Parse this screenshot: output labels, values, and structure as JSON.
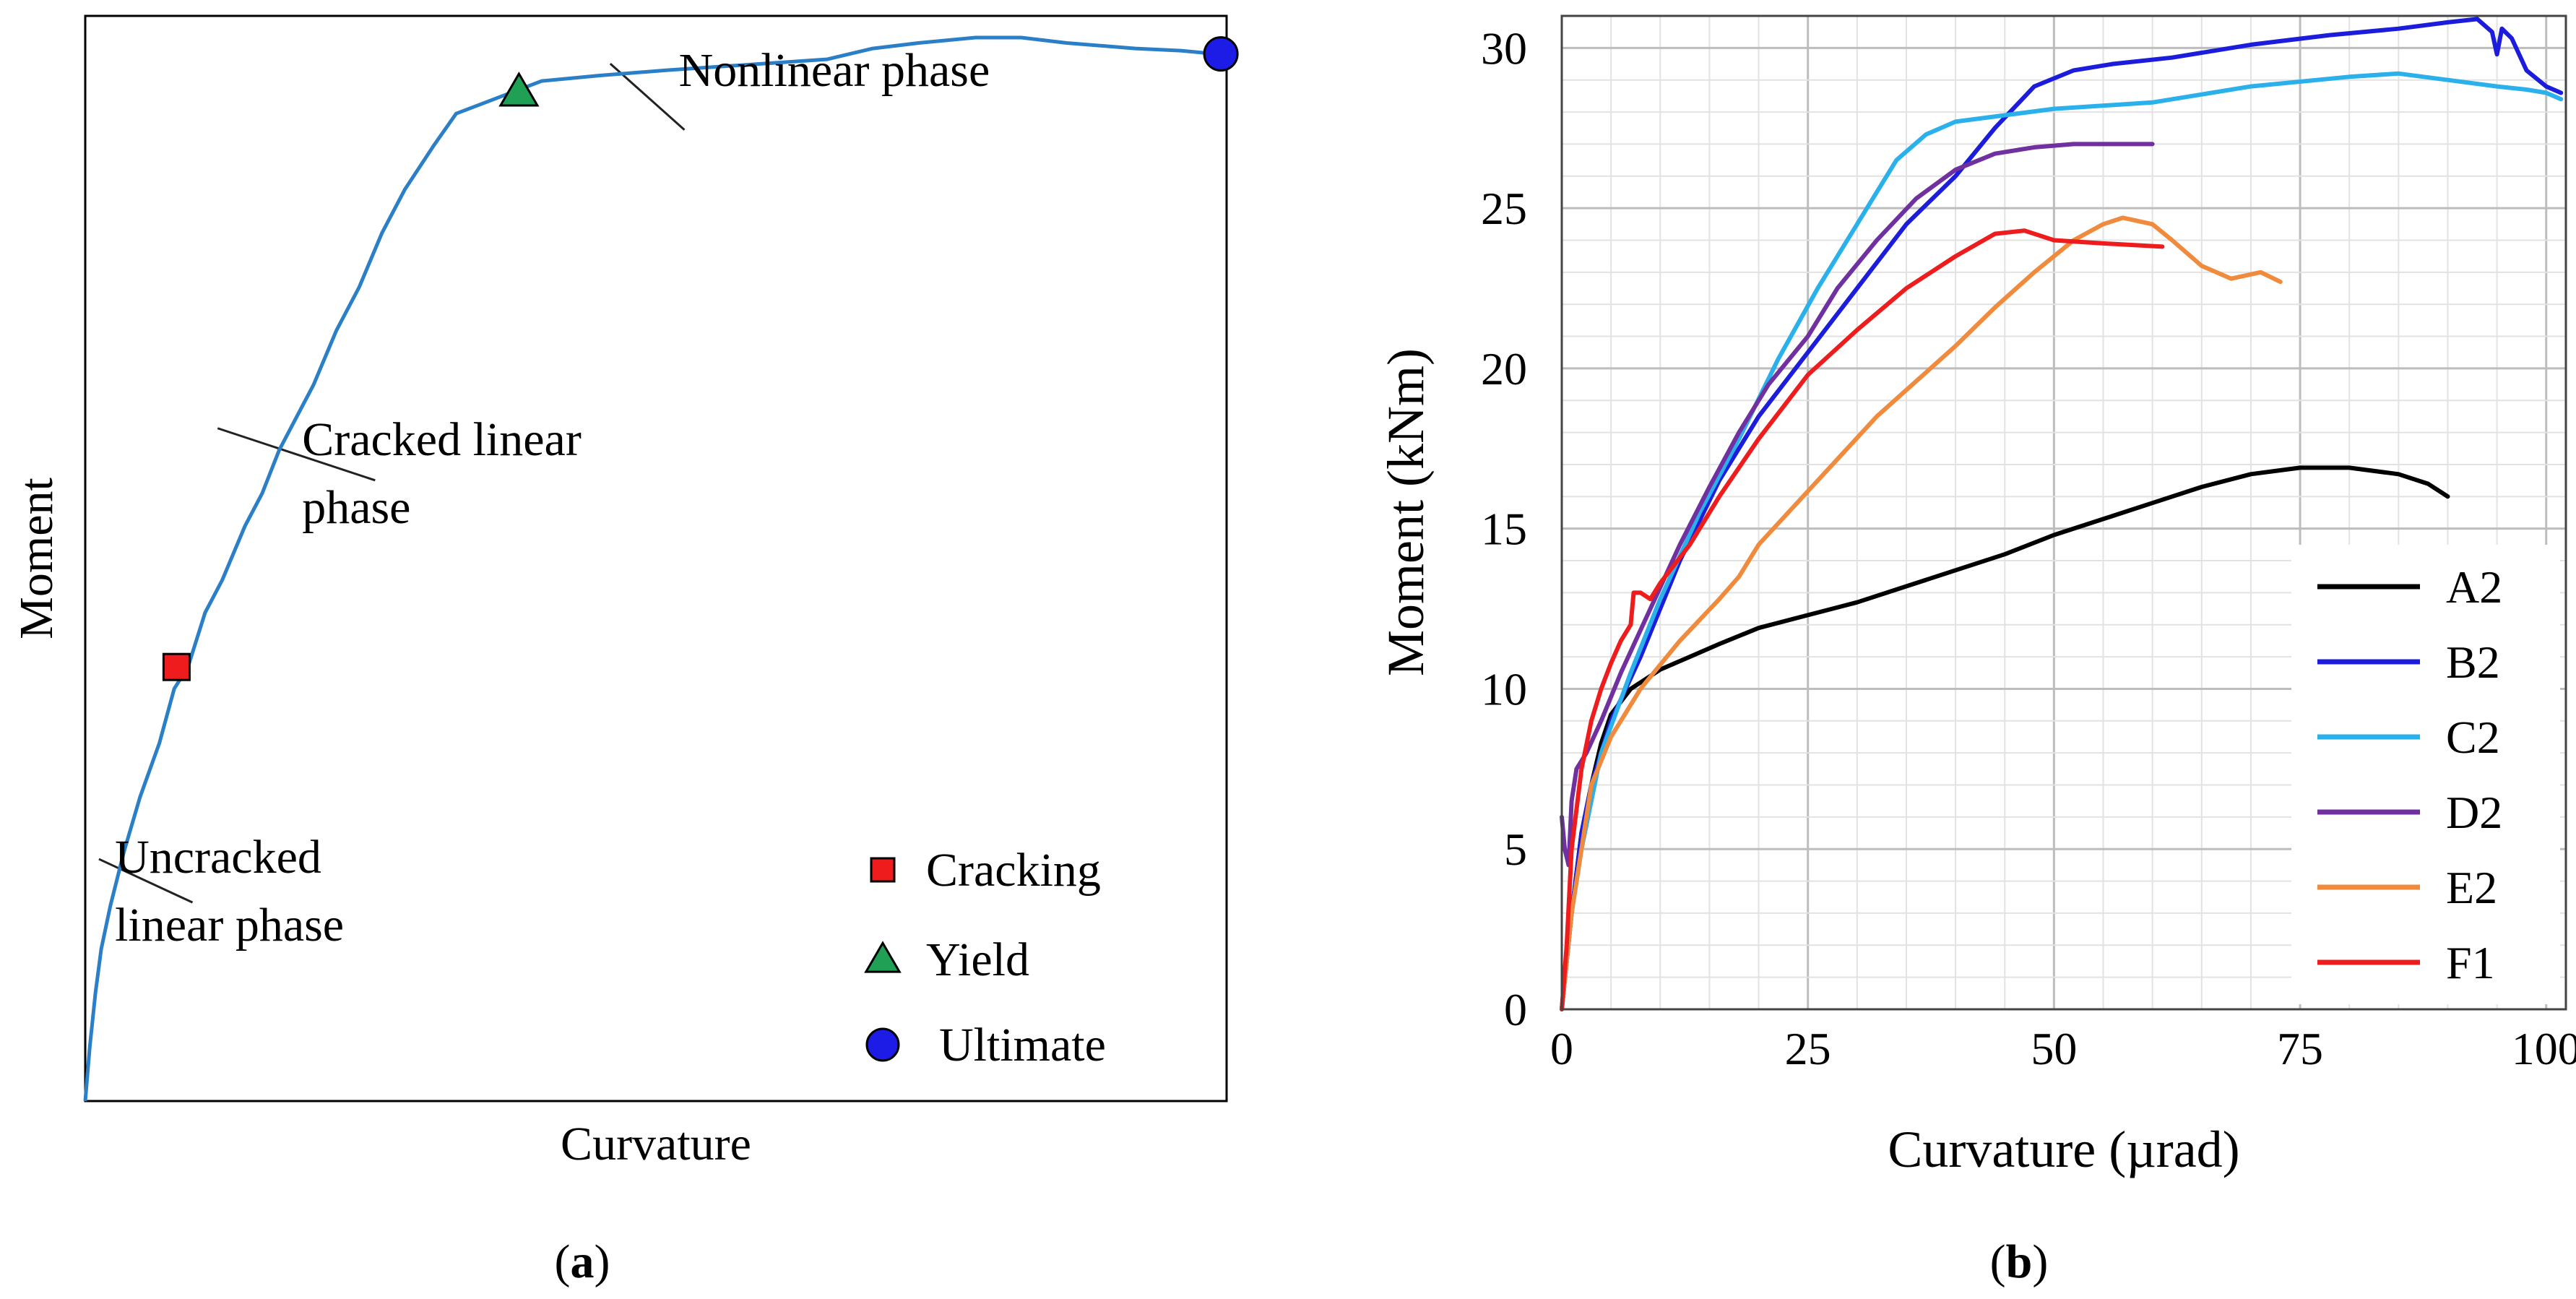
{
  "chart_data": [
    {
      "panel_label": "(a)",
      "type": "line",
      "xlabel": "Curvature",
      "ylabel": "Moment",
      "ticks_shown": false,
      "grid": false,
      "line_color": "#2b7fc7",
      "xlim": [
        0,
        100
      ],
      "ylim": [
        0,
        100
      ],
      "series": [
        {
          "values": [
            [
              0,
              0
            ],
            [
              0.4,
              5
            ],
            [
              0.9,
              10
            ],
            [
              1.4,
              14
            ],
            [
              2.2,
              18
            ],
            [
              3.4,
              23
            ],
            [
              4.8,
              28
            ],
            [
              6.5,
              33
            ],
            [
              7.8,
              38
            ],
            [
              9.0,
              40
            ],
            [
              10.5,
              45
            ],
            [
              12.0,
              48
            ],
            [
              14.0,
              53
            ],
            [
              15.5,
              56
            ],
            [
              17.0,
              60
            ],
            [
              18.5,
              63
            ],
            [
              20.0,
              66
            ],
            [
              22.0,
              71
            ],
            [
              24.0,
              75
            ],
            [
              26.0,
              80
            ],
            [
              28.0,
              84
            ],
            [
              30.5,
              88
            ],
            [
              32.5,
              91
            ],
            [
              35.0,
              92
            ],
            [
              37.5,
              93
            ],
            [
              40,
              94
            ],
            [
              45,
              94.5
            ],
            [
              51,
              95
            ],
            [
              58,
              95.5
            ],
            [
              65,
              96
            ],
            [
              69,
              97
            ],
            [
              73,
              97.5
            ],
            [
              78,
              98
            ],
            [
              82,
              98
            ],
            [
              86,
              97.5
            ],
            [
              92,
              97
            ],
            [
              96,
              96.8
            ],
            [
              99,
              96.5
            ]
          ]
        }
      ],
      "markers": [
        {
          "label": "Cracking",
          "x": 8.0,
          "y": 40,
          "shape": "square",
          "color": "#ee1c1c"
        },
        {
          "label": "Yield",
          "x": 38.0,
          "y": 93,
          "shape": "triangle",
          "color": "#1fa055"
        },
        {
          "label": "Ultimate",
          "x": 99.5,
          "y": 96.5,
          "shape": "circle",
          "color": "#1c1ce6"
        }
      ],
      "annotations": [
        {
          "lines": [
            "Nonlinear phase"
          ],
          "x": 52,
          "y": 95
        },
        {
          "lines": [
            "Cracked linear",
            "phase"
          ],
          "x": 19,
          "y": 61
        },
        {
          "lines": [
            "Uncracked",
            "linear phase"
          ],
          "x": 2.6,
          "y": 22.5
        }
      ],
      "legend": {
        "placement": "bottom-right",
        "entries": [
          "Cracking",
          "Yield",
          "Ultimate"
        ]
      }
    },
    {
      "panel_label": "(b)",
      "type": "line",
      "xlabel": "Curvature (µrad)",
      "ylabel": "Moment (kNm)",
      "xlim": [
        0,
        102
      ],
      "ylim": [
        0,
        31
      ],
      "x_ticks": [
        0,
        25,
        50,
        75,
        100
      ],
      "y_ticks": [
        0,
        5,
        10,
        15,
        20,
        25,
        30
      ],
      "grid": true,
      "legend": {
        "placement": "bottom-right"
      },
      "series": [
        {
          "name": "A2",
          "color": "#000000",
          "values": [
            [
              0,
              0
            ],
            [
              0.5,
              1.5
            ],
            [
              1,
              3
            ],
            [
              2,
              5.5
            ],
            [
              3,
              7
            ],
            [
              4,
              8.3
            ],
            [
              5,
              9.2
            ],
            [
              7,
              10
            ],
            [
              10,
              10.6
            ],
            [
              13,
              11
            ],
            [
              16,
              11.4
            ],
            [
              20,
              11.9
            ],
            [
              25,
              12.3
            ],
            [
              30,
              12.7
            ],
            [
              35,
              13.2
            ],
            [
              40,
              13.7
            ],
            [
              45,
              14.2
            ],
            [
              50,
              14.8
            ],
            [
              55,
              15.3
            ],
            [
              60,
              15.8
            ],
            [
              65,
              16.3
            ],
            [
              70,
              16.7
            ],
            [
              75,
              16.9
            ],
            [
              80,
              16.9
            ],
            [
              85,
              16.7
            ],
            [
              88,
              16.4
            ],
            [
              90,
              16
            ]
          ]
        },
        {
          "name": "B2",
          "color": "#1c1cdc",
          "values": [
            [
              0,
              0
            ],
            [
              1,
              3
            ],
            [
              2,
              5.5
            ],
            [
              3,
              7
            ],
            [
              5,
              9
            ],
            [
              8,
              11
            ],
            [
              12,
              14
            ],
            [
              16,
              16.5
            ],
            [
              20,
              18.5
            ],
            [
              25,
              20.5
            ],
            [
              30,
              22.5
            ],
            [
              35,
              24.5
            ],
            [
              40,
              26
            ],
            [
              44,
              27.5
            ],
            [
              48,
              28.8
            ],
            [
              52,
              29.3
            ],
            [
              56,
              29.5
            ],
            [
              62,
              29.7
            ],
            [
              70,
              30.1
            ],
            [
              78,
              30.4
            ],
            [
              85,
              30.6
            ],
            [
              90,
              30.8
            ],
            [
              93,
              30.9
            ],
            [
              94.5,
              30.5
            ],
            [
              95,
              29.8
            ],
            [
              95.5,
              30.6
            ],
            [
              96.5,
              30.3
            ],
            [
              98,
              29.3
            ],
            [
              100,
              28.8
            ],
            [
              101.5,
              28.6
            ]
          ]
        },
        {
          "name": "C2",
          "color": "#2ab0ea",
          "values": [
            [
              0,
              0
            ],
            [
              1,
              3
            ],
            [
              2,
              5
            ],
            [
              4,
              8
            ],
            [
              7,
              10.5
            ],
            [
              10,
              12.8
            ],
            [
              14,
              15.5
            ],
            [
              18,
              17.8
            ],
            [
              22,
              20.3
            ],
            [
              26,
              22.5
            ],
            [
              30,
              24.5
            ],
            [
              34,
              26.5
            ],
            [
              37,
              27.3
            ],
            [
              40,
              27.7
            ],
            [
              45,
              27.9
            ],
            [
              50,
              28.1
            ],
            [
              60,
              28.3
            ],
            [
              70,
              28.8
            ],
            [
              80,
              29.1
            ],
            [
              85,
              29.2
            ],
            [
              90,
              29
            ],
            [
              95,
              28.8
            ],
            [
              98,
              28.7
            ],
            [
              100,
              28.6
            ],
            [
              101.5,
              28.4
            ]
          ]
        },
        {
          "name": "D2",
          "color": "#7030a0",
          "values": [
            [
              0,
              6
            ],
            [
              0.3,
              5
            ],
            [
              0.7,
              4.5
            ],
            [
              1,
              6.5
            ],
            [
              1.5,
              7.5
            ],
            [
              2.5,
              8
            ],
            [
              4,
              9
            ],
            [
              6,
              10.5
            ],
            [
              9,
              12.5
            ],
            [
              12,
              14.5
            ],
            [
              15,
              16.3
            ],
            [
              18,
              18
            ],
            [
              21,
              19.5
            ],
            [
              25,
              21
            ],
            [
              28,
              22.5
            ],
            [
              32,
              24
            ],
            [
              36,
              25.3
            ],
            [
              40,
              26.2
            ],
            [
              44,
              26.7
            ],
            [
              48,
              26.9
            ],
            [
              52,
              27
            ],
            [
              56,
              27
            ],
            [
              60,
              27
            ]
          ]
        },
        {
          "name": "E2",
          "color": "#f08a3c",
          "values": [
            [
              0,
              0
            ],
            [
              1,
              3
            ],
            [
              2,
              5
            ],
            [
              3,
              7
            ],
            [
              5,
              8.5
            ],
            [
              8,
              10
            ],
            [
              12,
              11.5
            ],
            [
              16,
              12.8
            ],
            [
              18,
              13.5
            ],
            [
              20,
              14.5
            ],
            [
              23,
              15.5
            ],
            [
              26,
              16.5
            ],
            [
              29,
              17.5
            ],
            [
              32,
              18.5
            ],
            [
              36,
              19.6
            ],
            [
              40,
              20.7
            ],
            [
              44,
              21.9
            ],
            [
              48,
              23
            ],
            [
              52,
              24
            ],
            [
              55,
              24.5
            ],
            [
              57,
              24.7
            ],
            [
              60,
              24.5
            ],
            [
              62,
              24
            ],
            [
              65,
              23.2
            ],
            [
              68,
              22.8
            ],
            [
              71,
              23
            ],
            [
              73,
              22.7
            ]
          ]
        },
        {
          "name": "F1",
          "color": "#ee1c1c",
          "values": [
            [
              0,
              0
            ],
            [
              0.5,
              2
            ],
            [
              1,
              5
            ],
            [
              2,
              7.5
            ],
            [
              3,
              9
            ],
            [
              4,
              10
            ],
            [
              5,
              10.8
            ],
            [
              6,
              11.5
            ],
            [
              7,
              12
            ],
            [
              7.3,
              13
            ],
            [
              8,
              13
            ],
            [
              9,
              12.8
            ],
            [
              10,
              13.3
            ],
            [
              13,
              14.5
            ],
            [
              16,
              16
            ],
            [
              20,
              17.8
            ],
            [
              25,
              19.8
            ],
            [
              30,
              21.2
            ],
            [
              35,
              22.5
            ],
            [
              40,
              23.5
            ],
            [
              44,
              24.2
            ],
            [
              47,
              24.3
            ],
            [
              50,
              24
            ],
            [
              55,
              23.9
            ],
            [
              61,
              23.8
            ]
          ]
        }
      ]
    }
  ]
}
